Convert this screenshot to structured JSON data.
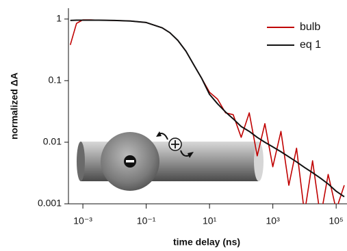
{
  "chart_data": {
    "type": "line",
    "x_label": "time delay (ns)",
    "y_label": "normalized ΔA",
    "x": [
      0.0004,
      0.00063,
      0.001,
      0.0018,
      0.0032,
      0.01,
      0.032,
      0.1,
      0.32,
      0.56,
      1,
      1.8,
      3.2,
      5.6,
      10,
      18,
      32,
      56,
      100,
      180,
      320,
      560,
      1000,
      1800,
      3200,
      5600,
      10000,
      18000,
      32000,
      56000,
      100000,
      180000
    ],
    "series": [
      {
        "name": "bulb",
        "color": "#c00000",
        "values": [
          0.38,
          0.85,
          0.97,
          0.97,
          0.96,
          0.95,
          0.93,
          0.88,
          0.72,
          0.6,
          0.45,
          0.3,
          0.18,
          0.11,
          0.065,
          0.05,
          0.03,
          0.028,
          0.012,
          0.03,
          0.006,
          0.02,
          0.004,
          0.015,
          0.002,
          0.008,
          0.0007,
          0.005,
          0.0006,
          0.003,
          0.0008,
          0.002
        ]
      },
      {
        "name": "eq 1",
        "color": "#111111",
        "values": [
          0.95,
          0.96,
          0.96,
          0.96,
          0.96,
          0.95,
          0.93,
          0.88,
          0.72,
          0.6,
          0.45,
          0.3,
          0.18,
          0.11,
          0.06,
          0.042,
          0.031,
          0.024,
          0.018,
          0.015,
          0.012,
          0.01,
          0.0084,
          0.007,
          0.0058,
          0.0048,
          0.0039,
          0.0032,
          0.0026,
          0.0021,
          0.0016,
          0.0013
        ]
      }
    ],
    "xscale": "log",
    "yscale": "log",
    "xlim": [
      0.00035,
      220000
    ],
    "ylim": [
      0.001,
      1.5
    ],
    "xticks": [
      {
        "value": 0.001,
        "label": "10⁻³"
      },
      {
        "value": 0.1,
        "label": "10⁻¹"
      },
      {
        "value": 10,
        "label": "10¹"
      },
      {
        "value": 1000,
        "label": "10³"
      },
      {
        "value": 100000,
        "label": "10⁵"
      }
    ],
    "yticks": [
      1,
      0.1,
      0.01,
      0.001
    ],
    "legend": "top-right"
  }
}
